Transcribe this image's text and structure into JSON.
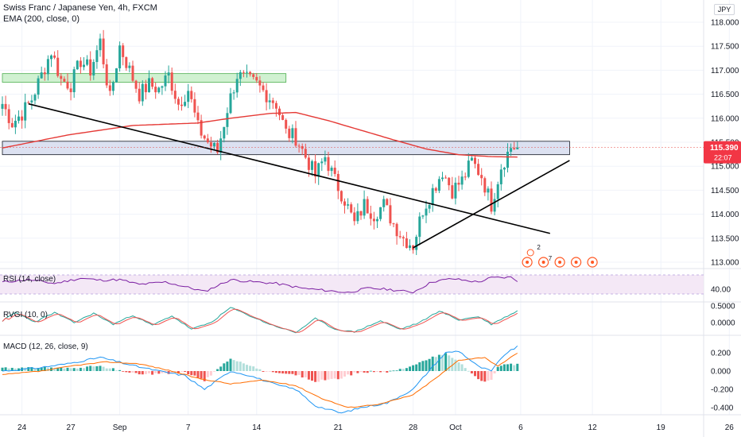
{
  "header": {
    "symbol": "Swiss Franc / Japanese Yen, 4h, FXCM",
    "indicator": "EMA (200, close, 0)",
    "currency": "JPY"
  },
  "price_tag": {
    "value": "115.390",
    "countdown": "22:07",
    "color": "#f23645"
  },
  "colors": {
    "up": "#26a69a",
    "down": "#ef5350",
    "ema": "#e53935",
    "rsi": "#7b1fa2",
    "rvgi_main": "#26a69a",
    "rvgi_signal": "#ef5350",
    "macd": "#2196f3",
    "signal": "#ff6d00",
    "zone_green": "#c8efc9",
    "zone_blue": "#d6dcef"
  },
  "chart_data": [
    {
      "type": "candlestick",
      "title": "Swiss Franc / Japanese Yen, 4h, FXCM",
      "ylim": [
        112.85,
        118.2
      ],
      "y_ticks": [
        "113.000",
        "113.500",
        "114.000",
        "114.500",
        "115.000",
        "115.500",
        "116.000",
        "116.500",
        "117.000",
        "117.500",
        "118.000"
      ],
      "x_ticks": [
        "24",
        "27",
        "Sep",
        "7",
        "14",
        "21",
        "28",
        "Oct",
        "6",
        "12",
        "19",
        "26"
      ],
      "close_anchors": [
        [
          0,
          116.3
        ],
        [
          3,
          115.9
        ],
        [
          6,
          116.1
        ],
        [
          9,
          116.4
        ],
        [
          12,
          116.9
        ],
        [
          15,
          117.4
        ],
        [
          18,
          116.8
        ],
        [
          21,
          116.7
        ],
        [
          24,
          117.2
        ],
        [
          27,
          117.0
        ],
        [
          30,
          117.6
        ],
        [
          33,
          116.4
        ],
        [
          36,
          117.5
        ],
        [
          39,
          117.0
        ],
        [
          42,
          116.5
        ],
        [
          45,
          116.7
        ],
        [
          48,
          116.6
        ],
        [
          51,
          116.9
        ],
        [
          54,
          116.3
        ],
        [
          57,
          116.6
        ],
        [
          60,
          115.8
        ],
        [
          63,
          115.5
        ],
        [
          66,
          115.3
        ],
        [
          69,
          116.2
        ],
        [
          72,
          116.9
        ],
        [
          75,
          116.8
        ],
        [
          78,
          116.7
        ],
        [
          81,
          116.5
        ],
        [
          84,
          116.3
        ],
        [
          87,
          115.7
        ],
        [
          90,
          115.6
        ],
        [
          93,
          115.2
        ],
        [
          96,
          114.8
        ],
        [
          99,
          115.2
        ],
        [
          102,
          114.7
        ],
        [
          105,
          114.3
        ],
        [
          108,
          113.8
        ],
        [
          111,
          114.2
        ],
        [
          114,
          114.0
        ],
        [
          117,
          114.2
        ],
        [
          120,
          113.8
        ],
        [
          123,
          113.5
        ],
        [
          126,
          113.35
        ],
        [
          129,
          114.1
        ],
        [
          132,
          114.5
        ],
        [
          135,
          114.9
        ],
        [
          138,
          114.5
        ],
        [
          141,
          114.7
        ],
        [
          144,
          115.1
        ],
        [
          147,
          114.8
        ],
        [
          150,
          114.2
        ],
        [
          153,
          115.0
        ],
        [
          156,
          115.4
        ],
        [
          158,
          115.39
        ]
      ],
      "ema_anchors": [
        [
          0,
          115.38
        ],
        [
          20,
          115.65
        ],
        [
          40,
          115.85
        ],
        [
          60,
          115.9
        ],
        [
          70,
          116.0
        ],
        [
          82,
          116.1
        ],
        [
          90,
          116.12
        ],
        [
          100,
          115.95
        ],
        [
          110,
          115.75
        ],
        [
          120,
          115.55
        ],
        [
          130,
          115.36
        ],
        [
          140,
          115.24
        ],
        [
          150,
          115.2
        ],
        [
          158,
          115.19
        ]
      ],
      "zones": [
        {
          "from": 0,
          "to": 87,
          "low": 116.8,
          "high": 116.88
        },
        {
          "from": 0,
          "to": 174,
          "low": 115.29,
          "high": 115.47
        }
      ],
      "trendlines": [
        {
          "from": [
            8,
            116.3
          ],
          "to": [
            168,
            113.6
          ]
        },
        {
          "from": [
            126,
            113.3
          ],
          "to": [
            174,
            115.12
          ]
        }
      ],
      "event_markers": [
        "2",
        "7"
      ]
    },
    {
      "type": "line",
      "name": "RSI (14, close)",
      "ylim": [
        20,
        80
      ],
      "band": [
        30,
        70
      ],
      "y_ticks": [
        "40.00"
      ],
      "anchors": [
        [
          0,
          55
        ],
        [
          8,
          60
        ],
        [
          16,
          52
        ],
        [
          24,
          63
        ],
        [
          30,
          59
        ],
        [
          36,
          60
        ],
        [
          42,
          50
        ],
        [
          50,
          55
        ],
        [
          58,
          42
        ],
        [
          62,
          35
        ],
        [
          70,
          60
        ],
        [
          76,
          56
        ],
        [
          84,
          52
        ],
        [
          92,
          42
        ],
        [
          100,
          37
        ],
        [
          106,
          33
        ],
        [
          112,
          42
        ],
        [
          118,
          40
        ],
        [
          124,
          35
        ],
        [
          126,
          34
        ],
        [
          132,
          56
        ],
        [
          138,
          62
        ],
        [
          146,
          55
        ],
        [
          150,
          64
        ],
        [
          156,
          65
        ],
        [
          158,
          58
        ]
      ]
    },
    {
      "type": "line",
      "name": "RVGI (10, 0)",
      "ylim": [
        -0.6,
        0.6
      ],
      "y_ticks": [
        "0.5000",
        "0.0000"
      ],
      "anchors": [
        [
          0,
          0.05
        ],
        [
          4,
          0.3
        ],
        [
          10,
          0.02
        ],
        [
          16,
          0.3
        ],
        [
          22,
          0.0
        ],
        [
          28,
          0.28
        ],
        [
          34,
          -0.05
        ],
        [
          40,
          0.22
        ],
        [
          46,
          -0.08
        ],
        [
          52,
          0.2
        ],
        [
          58,
          -0.2
        ],
        [
          64,
          0.0
        ],
        [
          70,
          0.45
        ],
        [
          76,
          0.2
        ],
        [
          82,
          -0.05
        ],
        [
          90,
          -0.3
        ],
        [
          96,
          0.12
        ],
        [
          102,
          -0.2
        ],
        [
          108,
          -0.28
        ],
        [
          116,
          0.05
        ],
        [
          122,
          -0.2
        ],
        [
          128,
          0.0
        ],
        [
          134,
          0.35
        ],
        [
          140,
          0.08
        ],
        [
          146,
          0.18
        ],
        [
          150,
          -0.05
        ],
        [
          158,
          0.35
        ]
      ]
    },
    {
      "type": "bar+line",
      "name": "MACD (12, 26, close, 9)",
      "ylim": [
        -0.5,
        0.32
      ],
      "y_ticks": [
        "0.200",
        "0.000",
        "-0.200",
        "-0.400"
      ],
      "macd_anchors": [
        [
          0,
          0.0
        ],
        [
          10,
          0.03
        ],
        [
          20,
          0.08
        ],
        [
          30,
          0.15
        ],
        [
          40,
          0.06
        ],
        [
          48,
          0.0
        ],
        [
          56,
          -0.05
        ],
        [
          62,
          -0.2
        ],
        [
          70,
          0.0
        ],
        [
          76,
          -0.05
        ],
        [
          84,
          -0.15
        ],
        [
          90,
          -0.2
        ],
        [
          96,
          -0.38
        ],
        [
          104,
          -0.46
        ],
        [
          110,
          -0.4
        ],
        [
          118,
          -0.35
        ],
        [
          126,
          -0.2
        ],
        [
          132,
          0.05
        ],
        [
          136,
          0.2
        ],
        [
          140,
          0.22
        ],
        [
          146,
          0.05
        ],
        [
          150,
          0.0
        ],
        [
          154,
          0.18
        ],
        [
          158,
          0.27
        ]
      ],
      "signal_anchors": [
        [
          0,
          -0.04
        ],
        [
          12,
          0.0
        ],
        [
          22,
          0.06
        ],
        [
          32,
          0.1
        ],
        [
          42,
          0.08
        ],
        [
          52,
          0.0
        ],
        [
          60,
          -0.08
        ],
        [
          70,
          -0.14
        ],
        [
          80,
          -0.1
        ],
        [
          90,
          -0.16
        ],
        [
          98,
          -0.3
        ],
        [
          106,
          -0.4
        ],
        [
          116,
          -0.36
        ],
        [
          126,
          -0.26
        ],
        [
          134,
          -0.05
        ],
        [
          140,
          0.12
        ],
        [
          148,
          0.15
        ],
        [
          152,
          0.05
        ],
        [
          158,
          0.2
        ]
      ]
    }
  ]
}
